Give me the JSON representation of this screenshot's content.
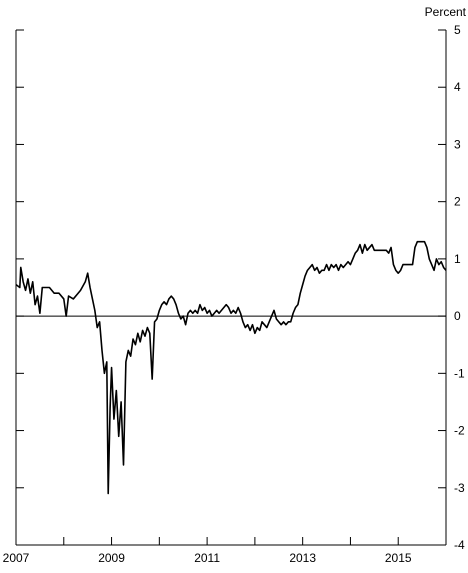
{
  "chart_data": {
    "type": "line",
    "title": "",
    "xlabel": "",
    "ylabel": "",
    "unit_label": "Percent",
    "xlim": [
      2007,
      2016
    ],
    "ylim": [
      -4,
      5
    ],
    "x_ticks": [
      2007,
      2009,
      2011,
      2013,
      2015
    ],
    "x_tick_labels": [
      "2007",
      "2009",
      "2011",
      "2013",
      "2015"
    ],
    "y_ticks": [
      5,
      4,
      3,
      2,
      1,
      0,
      -1,
      -2,
      -3,
      -4
    ],
    "y_tick_labels": [
      "5",
      "4",
      "3",
      "2",
      "1",
      "0",
      "-1",
      "-2",
      "-3",
      "-4"
    ],
    "zero_line": true,
    "grid": false,
    "y_axis_side": "right",
    "series": [
      {
        "values": [
          [
            2007.0,
            0.55
          ],
          [
            2007.08,
            0.5
          ],
          [
            2007.1,
            0.85
          ],
          [
            2007.15,
            0.6
          ],
          [
            2007.2,
            0.45
          ],
          [
            2007.25,
            0.65
          ],
          [
            2007.3,
            0.4
          ],
          [
            2007.35,
            0.6
          ],
          [
            2007.4,
            0.2
          ],
          [
            2007.45,
            0.35
          ],
          [
            2007.5,
            0.05
          ],
          [
            2007.55,
            0.5
          ],
          [
            2007.6,
            0.5
          ],
          [
            2007.7,
            0.5
          ],
          [
            2007.8,
            0.4
          ],
          [
            2007.9,
            0.4
          ],
          [
            2008.0,
            0.3
          ],
          [
            2008.05,
            0.0
          ],
          [
            2008.1,
            0.35
          ],
          [
            2008.2,
            0.3
          ],
          [
            2008.3,
            0.4
          ],
          [
            2008.35,
            0.45
          ],
          [
            2008.45,
            0.6
          ],
          [
            2008.5,
            0.75
          ],
          [
            2008.55,
            0.5
          ],
          [
            2008.6,
            0.3
          ],
          [
            2008.65,
            0.1
          ],
          [
            2008.7,
            -0.2
          ],
          [
            2008.75,
            -0.1
          ],
          [
            2008.8,
            -0.6
          ],
          [
            2008.85,
            -1.0
          ],
          [
            2008.9,
            -0.8
          ],
          [
            2008.93,
            -3.1
          ],
          [
            2008.97,
            -1.6
          ],
          [
            2009.0,
            -0.9
          ],
          [
            2009.05,
            -1.8
          ],
          [
            2009.1,
            -1.3
          ],
          [
            2009.15,
            -2.1
          ],
          [
            2009.2,
            -1.5
          ],
          [
            2009.25,
            -2.6
          ],
          [
            2009.3,
            -0.8
          ],
          [
            2009.35,
            -0.6
          ],
          [
            2009.4,
            -0.7
          ],
          [
            2009.45,
            -0.4
          ],
          [
            2009.5,
            -0.5
          ],
          [
            2009.55,
            -0.3
          ],
          [
            2009.6,
            -0.45
          ],
          [
            2009.65,
            -0.25
          ],
          [
            2009.7,
            -0.35
          ],
          [
            2009.75,
            -0.2
          ],
          [
            2009.8,
            -0.3
          ],
          [
            2009.85,
            -1.1
          ],
          [
            2009.9,
            -0.1
          ],
          [
            2009.95,
            -0.05
          ],
          [
            2010.0,
            0.1
          ],
          [
            2010.05,
            0.2
          ],
          [
            2010.1,
            0.25
          ],
          [
            2010.15,
            0.2
          ],
          [
            2010.2,
            0.3
          ],
          [
            2010.25,
            0.35
          ],
          [
            2010.3,
            0.3
          ],
          [
            2010.35,
            0.2
          ],
          [
            2010.4,
            0.05
          ],
          [
            2010.45,
            -0.05
          ],
          [
            2010.5,
            0.0
          ],
          [
            2010.55,
            -0.15
          ],
          [
            2010.6,
            0.05
          ],
          [
            2010.65,
            0.1
          ],
          [
            2010.7,
            0.05
          ],
          [
            2010.75,
            0.1
          ],
          [
            2010.8,
            0.05
          ],
          [
            2010.85,
            0.2
          ],
          [
            2010.9,
            0.1
          ],
          [
            2010.95,
            0.15
          ],
          [
            2011.0,
            0.05
          ],
          [
            2011.05,
            0.1
          ],
          [
            2011.1,
            0.0
          ],
          [
            2011.15,
            0.05
          ],
          [
            2011.2,
            0.1
          ],
          [
            2011.25,
            0.05
          ],
          [
            2011.3,
            0.1
          ],
          [
            2011.35,
            0.15
          ],
          [
            2011.4,
            0.2
          ],
          [
            2011.45,
            0.15
          ],
          [
            2011.5,
            0.05
          ],
          [
            2011.55,
            0.1
          ],
          [
            2011.6,
            0.05
          ],
          [
            2011.65,
            0.15
          ],
          [
            2011.7,
            0.05
          ],
          [
            2011.75,
            -0.1
          ],
          [
            2011.8,
            -0.2
          ],
          [
            2011.85,
            -0.15
          ],
          [
            2011.9,
            -0.25
          ],
          [
            2011.95,
            -0.15
          ],
          [
            2012.0,
            -0.3
          ],
          [
            2012.05,
            -0.2
          ],
          [
            2012.1,
            -0.25
          ],
          [
            2012.15,
            -0.1
          ],
          [
            2012.2,
            -0.15
          ],
          [
            2012.25,
            -0.2
          ],
          [
            2012.3,
            -0.1
          ],
          [
            2012.35,
            0.0
          ],
          [
            2012.4,
            0.1
          ],
          [
            2012.45,
            -0.05
          ],
          [
            2012.5,
            -0.1
          ],
          [
            2012.55,
            -0.15
          ],
          [
            2012.6,
            -0.1
          ],
          [
            2012.65,
            -0.15
          ],
          [
            2012.7,
            -0.1
          ],
          [
            2012.75,
            -0.1
          ],
          [
            2012.8,
            0.05
          ],
          [
            2012.85,
            0.15
          ],
          [
            2012.9,
            0.2
          ],
          [
            2012.95,
            0.4
          ],
          [
            2013.0,
            0.55
          ],
          [
            2013.05,
            0.7
          ],
          [
            2013.1,
            0.8
          ],
          [
            2013.15,
            0.85
          ],
          [
            2013.2,
            0.9
          ],
          [
            2013.25,
            0.8
          ],
          [
            2013.3,
            0.85
          ],
          [
            2013.35,
            0.75
          ],
          [
            2013.4,
            0.8
          ],
          [
            2013.45,
            0.8
          ],
          [
            2013.5,
            0.9
          ],
          [
            2013.55,
            0.8
          ],
          [
            2013.6,
            0.9
          ],
          [
            2013.65,
            0.85
          ],
          [
            2013.7,
            0.9
          ],
          [
            2013.75,
            0.8
          ],
          [
            2013.8,
            0.9
          ],
          [
            2013.85,
            0.85
          ],
          [
            2013.9,
            0.9
          ],
          [
            2013.95,
            0.95
          ],
          [
            2014.0,
            0.9
          ],
          [
            2014.05,
            1.0
          ],
          [
            2014.1,
            1.1
          ],
          [
            2014.15,
            1.15
          ],
          [
            2014.2,
            1.25
          ],
          [
            2014.25,
            1.1
          ],
          [
            2014.3,
            1.25
          ],
          [
            2014.35,
            1.15
          ],
          [
            2014.4,
            1.2
          ],
          [
            2014.45,
            1.25
          ],
          [
            2014.5,
            1.15
          ],
          [
            2014.55,
            1.15
          ],
          [
            2014.6,
            1.15
          ],
          [
            2014.65,
            1.15
          ],
          [
            2014.7,
            1.15
          ],
          [
            2014.75,
            1.15
          ],
          [
            2014.8,
            1.1
          ],
          [
            2014.85,
            1.2
          ],
          [
            2014.9,
            0.9
          ],
          [
            2014.95,
            0.8
          ],
          [
            2015.0,
            0.75
          ],
          [
            2015.05,
            0.8
          ],
          [
            2015.1,
            0.9
          ],
          [
            2015.15,
            0.9
          ],
          [
            2015.2,
            0.9
          ],
          [
            2015.25,
            0.9
          ],
          [
            2015.3,
            0.9
          ],
          [
            2015.35,
            1.2
          ],
          [
            2015.4,
            1.3
          ],
          [
            2015.45,
            1.3
          ],
          [
            2015.5,
            1.3
          ],
          [
            2015.55,
            1.3
          ],
          [
            2015.6,
            1.2
          ],
          [
            2015.65,
            1.0
          ],
          [
            2015.7,
            0.9
          ],
          [
            2015.75,
            0.8
          ],
          [
            2015.8,
            1.0
          ],
          [
            2015.85,
            0.9
          ],
          [
            2015.9,
            0.95
          ],
          [
            2015.95,
            0.85
          ],
          [
            2016.0,
            0.8
          ]
        ]
      }
    ]
  }
}
